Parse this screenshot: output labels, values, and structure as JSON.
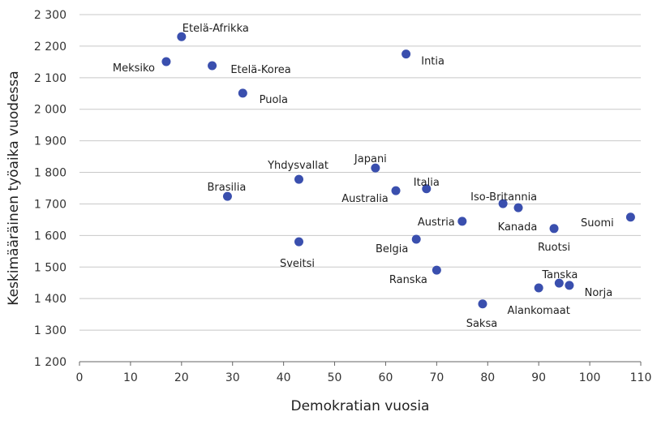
{
  "chart_data": {
    "type": "scatter",
    "title": "",
    "xlabel": "Demokratian vuosia",
    "ylabel": "Keskimääräinen työaika vuodessa",
    "xlim": [
      0,
      110
    ],
    "ylim": [
      1200,
      2300
    ],
    "x_ticks": [
      "0",
      "10",
      "20",
      "30",
      "40",
      "50",
      "60",
      "70",
      "80",
      "90",
      "100",
      "110"
    ],
    "y_ticks": [
      "1 200",
      "1 300",
      "1 400",
      "1 500",
      "1 600",
      "1 700",
      "1 800",
      "1 900",
      "2 000",
      "2 100",
      "2 200",
      "2 300"
    ],
    "grid": "horizontal",
    "point_color": "#3a4fae",
    "points": [
      {
        "label": "Etelä-Afrikka",
        "x": 20,
        "y": 2230
      },
      {
        "label": "Meksiko",
        "x": 17,
        "y": 2151
      },
      {
        "label": "Etelä-Korea",
        "x": 26,
        "y": 2138
      },
      {
        "label": "Puola",
        "x": 32,
        "y": 2051
      },
      {
        "label": "Intia",
        "x": 64,
        "y": 2175
      },
      {
        "label": "Japani",
        "x": 58,
        "y": 1814
      },
      {
        "label": "Yhdysvallat",
        "x": 43,
        "y": 1778
      },
      {
        "label": "Brasilia",
        "x": 29,
        "y": 1724
      },
      {
        "label": "Australia",
        "x": 62,
        "y": 1742
      },
      {
        "label": "Italia",
        "x": 68,
        "y": 1748
      },
      {
        "label": "Iso-Britannia",
        "x": 83,
        "y": 1701
      },
      {
        "label": "Kanada",
        "x": 86,
        "y": 1688
      },
      {
        "label": "Ruotsi",
        "x": 93,
        "y": 1622
      },
      {
        "label": "Suomi",
        "x": 108,
        "y": 1658
      },
      {
        "label": "Austria",
        "x": 75,
        "y": 1645
      },
      {
        "label": "Belgia",
        "x": 66,
        "y": 1588
      },
      {
        "label": "Sveitsi",
        "x": 43,
        "y": 1580
      },
      {
        "label": "Ranska",
        "x": 70,
        "y": 1490
      },
      {
        "label": "Tanska",
        "x": 94,
        "y": 1449
      },
      {
        "label": "Norja",
        "x": 96,
        "y": 1442
      },
      {
        "label": "Alankomaat",
        "x": 90,
        "y": 1434
      },
      {
        "label": "Saksa",
        "x": 79,
        "y": 1383
      }
    ]
  }
}
